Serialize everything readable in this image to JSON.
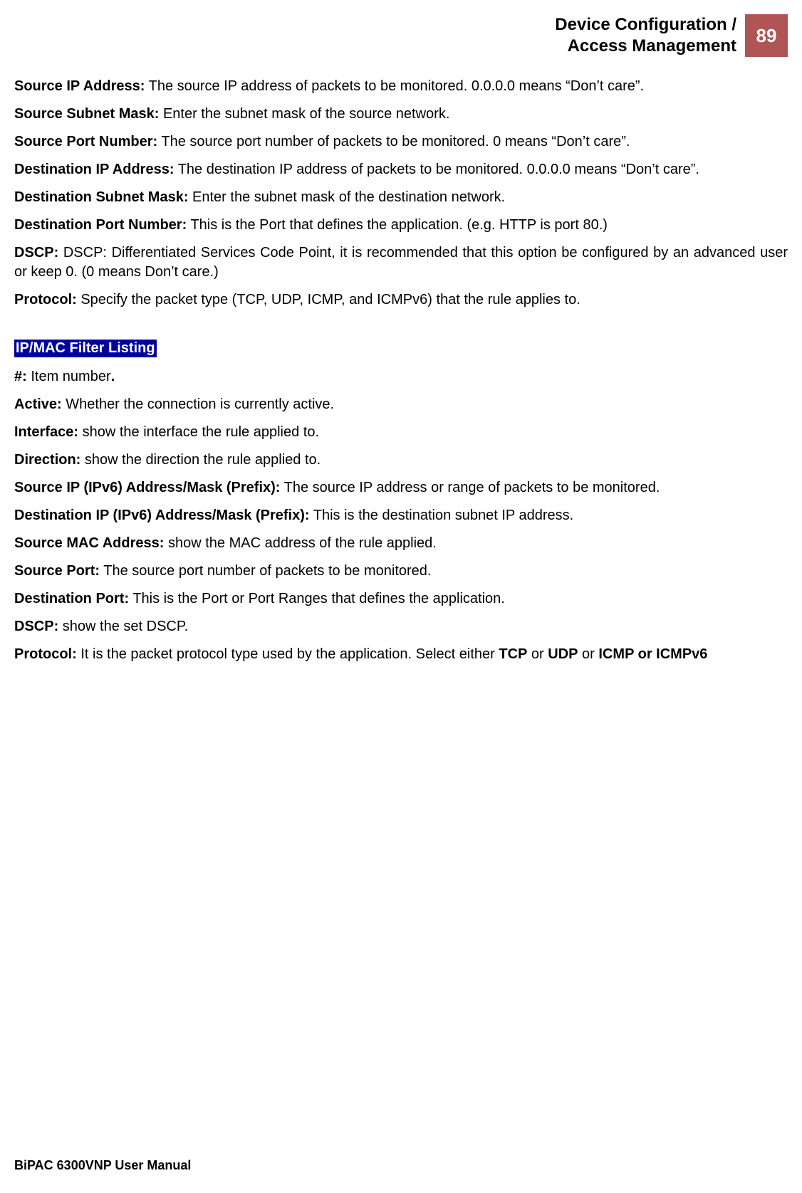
{
  "header": {
    "title_line1": "Device Configuration /",
    "title_line2": "Access Management",
    "page_number": "89",
    "page_number_bg": "#b05454",
    "page_number_fg": "#ffffff"
  },
  "section1": {
    "items": [
      {
        "term": "Source IP Address:",
        "desc": " The source IP address of packets to be monitored.  0.0.0.0 means “Don’t care”."
      },
      {
        "term": "Source Subnet Mask:",
        "desc": " Enter the subnet mask of the source network."
      },
      {
        "term": "Source Port Number:",
        "desc": " The source port number of packets to be monitored. 0 means “Don’t care”."
      },
      {
        "term": "Destination IP Address:",
        "desc": " The destination IP address of packets to be monitored.  0.0.0.0 means “Don’t care”."
      },
      {
        "term": "Destination Subnet Mask:",
        "desc": " Enter the subnet mask of the destination network."
      },
      {
        "term": "Destination Port Number:",
        "desc": " This is the Port that defines the application. (e.g. HTTP is port 80.)"
      },
      {
        "term": "DSCP:",
        "desc": " DSCP: Differentiated Services Code Point, it is recommended that this option be configured by an advanced user or keep 0. (0 means Don’t care.)"
      },
      {
        "term": "Protocol:",
        "desc": " Specify the packet type (TCP, UDP, ICMP, and ICMPv6) that the rule applies to."
      }
    ]
  },
  "section2_heading": "IP/MAC Filter Listing",
  "section2": {
    "items": [
      {
        "term": "#:",
        "desc": " Item number",
        "suffix_bold": "."
      },
      {
        "term": "Active:",
        "desc": " Whether the connection is currently active."
      },
      {
        "term": "Interface:",
        "desc": " show the interface the rule applied to."
      },
      {
        "term": "Direction:",
        "desc": " show the direction the rule applied to."
      },
      {
        "term": "Source IP (IPv6) Address/Mask (Prefix):",
        "desc": " The source IP address or range of packets to be monitored."
      },
      {
        "term": "Destination IP (IPv6) Address/Mask (Prefix):",
        "desc": " This is the destination subnet IP address."
      },
      {
        "term": "Source MAC Address:",
        "desc": " show the MAC address of the rule applied."
      },
      {
        "term": "Source Port:",
        "desc": " The source port number of packets to be monitored."
      },
      {
        "term": "Destination Port:",
        "desc": " This is the Port or Port Ranges that defines the application."
      },
      {
        "term": "DSCP:",
        "desc": " show the set DSCP."
      }
    ],
    "protocol_term": "Protocol:",
    "protocol_desc_pre": " It is the packet protocol type used by the application. Select either ",
    "protocol_tcp": "TCP",
    "protocol_or1": " or ",
    "protocol_udp": "UDP",
    "protocol_or2": " or ",
    "protocol_icmp": "ICMP or ICMPv6"
  },
  "footer": "BiPAC 6300VNP User Manual",
  "colors": {
    "heading_bg": "#0000a0",
    "heading_fg": "#ffffff",
    "text": "#000000",
    "background": "#ffffff"
  },
  "typography": {
    "body_fontsize": 20,
    "header_fontsize": 24,
    "pagenum_fontsize": 26,
    "footer_fontsize": 18
  }
}
